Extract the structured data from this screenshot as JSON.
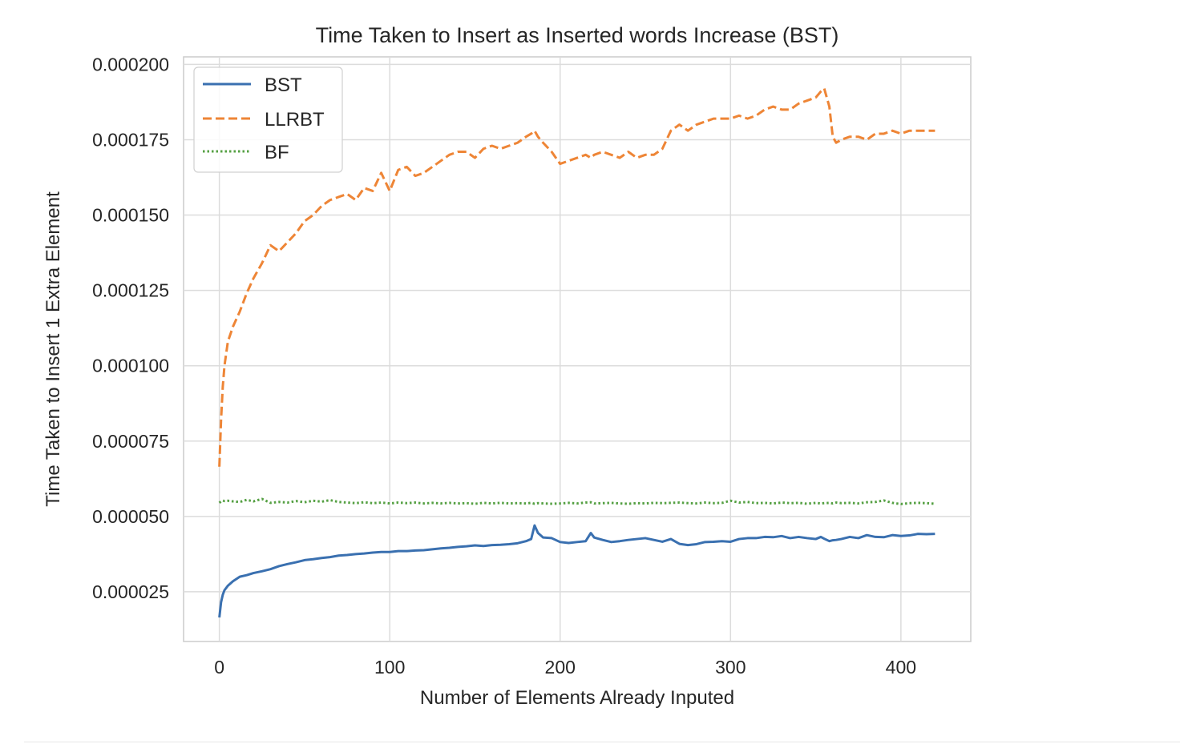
{
  "chart_data": {
    "type": "line",
    "title": "Time Taken to Insert as Inserted words Increase (BST)",
    "xlabel": "Number of Elements Already Inputed",
    "ylabel": "Time Taken to Insert 1 Extra Element",
    "xlim": [
      -21,
      441
    ],
    "ylim": [
      8.5e-06,
      0.0002025
    ],
    "xticks": [
      0,
      100,
      200,
      300,
      400
    ],
    "xtick_labels": [
      "0",
      "100",
      "200",
      "300",
      "400"
    ],
    "yticks": [
      2.5e-05,
      5e-05,
      7.5e-05,
      0.0001,
      0.000125,
      0.00015,
      0.000175,
      0.0002
    ],
    "ytick_labels": [
      "0.000025",
      "0.000050",
      "0.000075",
      "0.000100",
      "0.000125",
      "0.000150",
      "0.000175",
      "0.000200"
    ],
    "grid": true,
    "legend_position": "top-left",
    "x": [
      0,
      1,
      2,
      3,
      5,
      8,
      12,
      16,
      20,
      25,
      30,
      35,
      40,
      45,
      50,
      55,
      60,
      65,
      70,
      75,
      80,
      85,
      90,
      95,
      100,
      105,
      110,
      115,
      120,
      125,
      130,
      135,
      140,
      145,
      150,
      155,
      160,
      165,
      170,
      175,
      180,
      183,
      185,
      187,
      190,
      195,
      200,
      205,
      210,
      215,
      218,
      220,
      225,
      230,
      235,
      240,
      245,
      250,
      255,
      260,
      265,
      270,
      275,
      280,
      285,
      290,
      295,
      300,
      305,
      310,
      315,
      320,
      325,
      330,
      335,
      340,
      345,
      350,
      353,
      355,
      358,
      360,
      362,
      365,
      370,
      375,
      380,
      385,
      390,
      395,
      400,
      405,
      410,
      415,
      420
    ],
    "series": [
      {
        "name": "BST",
        "color": "#3a70b0",
        "dash": "solid",
        "values": [
          1.65e-05,
          2.15e-05,
          2.4e-05,
          2.55e-05,
          2.7e-05,
          2.85e-05,
          3e-05,
          3.05e-05,
          3.12e-05,
          3.18e-05,
          3.25e-05,
          3.35e-05,
          3.42e-05,
          3.48e-05,
          3.55e-05,
          3.58e-05,
          3.62e-05,
          3.65e-05,
          3.7e-05,
          3.72e-05,
          3.75e-05,
          3.77e-05,
          3.8e-05,
          3.82e-05,
          3.82e-05,
          3.85e-05,
          3.85e-05,
          3.87e-05,
          3.88e-05,
          3.91e-05,
          3.94e-05,
          3.96e-05,
          3.99e-05,
          4.01e-05,
          4.04e-05,
          4.02e-05,
          4.05e-05,
          4.06e-05,
          4.08e-05,
          4.11e-05,
          4.18e-05,
          4.25e-05,
          4.7e-05,
          4.45e-05,
          4.3e-05,
          4.28e-05,
          4.15e-05,
          4.12e-05,
          4.15e-05,
          4.18e-05,
          4.45e-05,
          4.3e-05,
          4.22e-05,
          4.15e-05,
          4.18e-05,
          4.22e-05,
          4.25e-05,
          4.28e-05,
          4.22e-05,
          4.16e-05,
          4.25e-05,
          4.09e-05,
          4.05e-05,
          4.08e-05,
          4.15e-05,
          4.16e-05,
          4.18e-05,
          4.16e-05,
          4.25e-05,
          4.28e-05,
          4.28e-05,
          4.32e-05,
          4.31e-05,
          4.35e-05,
          4.28e-05,
          4.32e-05,
          4.28e-05,
          4.25e-05,
          4.32e-05,
          4.26e-05,
          4.18e-05,
          4.21e-05,
          4.22e-05,
          4.25e-05,
          4.32e-05,
          4.28e-05,
          4.38e-05,
          4.32e-05,
          4.31e-05,
          4.38e-05,
          4.35e-05,
          4.37e-05,
          4.42e-05,
          4.41e-05,
          4.42e-05
        ]
      },
      {
        "name": "LLRBT",
        "color": "#ee8536",
        "dash": "dashed",
        "values": [
          6.65e-05,
          8.2e-05,
          9.3e-05,
          0.0001,
          0.000108,
          0.000113,
          0.000118,
          0.000124,
          0.000129,
          0.000134,
          0.00014,
          0.000138,
          0.000141,
          0.000144,
          0.000148,
          0.00015,
          0.000153,
          0.000155,
          0.000156,
          0.000157,
          0.000155,
          0.000159,
          0.000158,
          0.000164,
          0.000158,
          0.000165,
          0.000166,
          0.000163,
          0.000164,
          0.000166,
          0.000168,
          0.00017,
          0.000171,
          0.000171,
          0.000169,
          0.000172,
          0.000173,
          0.000172,
          0.000173,
          0.000174,
          0.000176,
          0.000177,
          0.000178,
          0.000176,
          0.000174,
          0.000171,
          0.000167,
          0.000168,
          0.000169,
          0.00017,
          0.000169,
          0.00017,
          0.000171,
          0.00017,
          0.000169,
          0.000171,
          0.000169,
          0.00017,
          0.00017,
          0.000172,
          0.000178,
          0.00018,
          0.000178,
          0.00018,
          0.000181,
          0.000182,
          0.000182,
          0.000182,
          0.000183,
          0.000182,
          0.000183,
          0.000185,
          0.000186,
          0.000185,
          0.000185,
          0.000187,
          0.000188,
          0.000189,
          0.000191,
          0.000192,
          0.000186,
          0.000176,
          0.000174,
          0.000175,
          0.000176,
          0.000176,
          0.000175,
          0.000177,
          0.000177,
          0.000178,
          0.000177,
          0.000178,
          0.000178,
          0.000178,
          0.000178
        ]
      },
      {
        "name": "BF",
        "color": "#55a043",
        "dash": "dotted",
        "values": [
          5.45e-05,
          5.5e-05,
          5.53e-05,
          5.51e-05,
          5.52e-05,
          5.5e-05,
          5.48e-05,
          5.55e-05,
          5.5e-05,
          5.58e-05,
          5.45e-05,
          5.48e-05,
          5.46e-05,
          5.51e-05,
          5.47e-05,
          5.52e-05,
          5.49e-05,
          5.54e-05,
          5.48e-05,
          5.46e-05,
          5.44e-05,
          5.47e-05,
          5.44e-05,
          5.46e-05,
          5.43e-05,
          5.46e-05,
          5.44e-05,
          5.46e-05,
          5.43e-05,
          5.45e-05,
          5.43e-05,
          5.45e-05,
          5.43e-05,
          5.44e-05,
          5.42e-05,
          5.45e-05,
          5.43e-05,
          5.45e-05,
          5.43e-05,
          5.44e-05,
          5.43e-05,
          5.45e-05,
          5.42e-05,
          5.44e-05,
          5.43e-05,
          5.42e-05,
          5.43e-05,
          5.45e-05,
          5.43e-05,
          5.46e-05,
          5.47e-05,
          5.43e-05,
          5.44e-05,
          5.45e-05,
          5.43e-05,
          5.42e-05,
          5.44e-05,
          5.43e-05,
          5.45e-05,
          5.44e-05,
          5.45e-05,
          5.46e-05,
          5.44e-05,
          5.43e-05,
          5.46e-05,
          5.44e-05,
          5.45e-05,
          5.52e-05,
          5.46e-05,
          5.48e-05,
          5.44e-05,
          5.45e-05,
          5.43e-05,
          5.46e-05,
          5.44e-05,
          5.45e-05,
          5.42e-05,
          5.45e-05,
          5.43e-05,
          5.44e-05,
          5.45e-05,
          5.43e-05,
          5.46e-05,
          5.44e-05,
          5.45e-05,
          5.43e-05,
          5.47e-05,
          5.48e-05,
          5.53e-05,
          5.45e-05,
          5.41e-05,
          5.44e-05,
          5.45e-05,
          5.44e-05,
          5.42e-05
        ]
      }
    ]
  }
}
